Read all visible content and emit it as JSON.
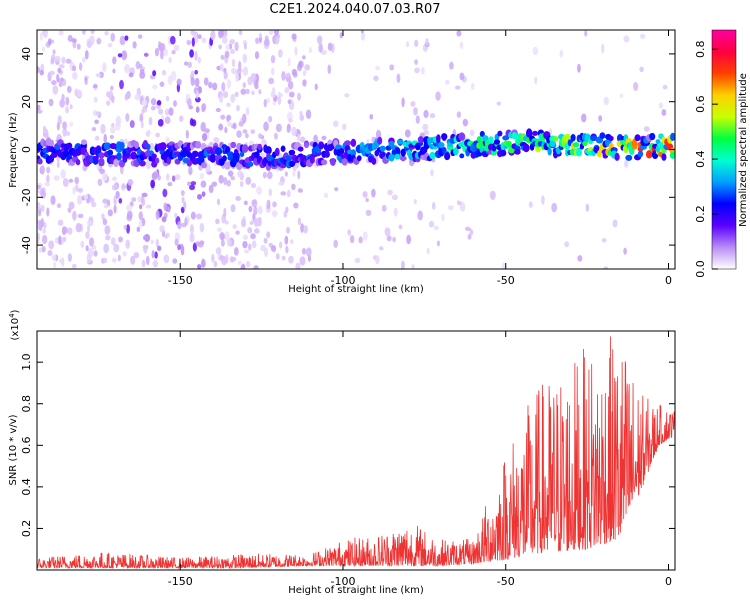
{
  "title": "C2E1.2024.040.07.03.R07",
  "chart_data": [
    {
      "type": "heatmap",
      "xlabel": "Height of straight line (km)",
      "ylabel": "Frequency (Hz)",
      "xlim": [
        -194,
        2
      ],
      "ylim": [
        -50,
        50
      ],
      "x_ticks": [
        -150,
        -100,
        -50,
        0
      ],
      "y_ticks": [
        -40,
        -20,
        0,
        20,
        40
      ],
      "colorbar": {
        "label": "Normalized spectral amplitude",
        "range": [
          0,
          0.87
        ],
        "ticks": [
          0.0,
          0.2,
          0.4,
          0.6,
          0.8
        ],
        "colors": [
          "#ffffff",
          "#b98cf5",
          "#5a00ff",
          "#0000ff",
          "#00a0ff",
          "#00ffd0",
          "#00ff40",
          "#c8ff00",
          "#ffd000",
          "#ff4000",
          "#ff0040",
          "#ff00a0"
        ]
      },
      "band_center_hz": [
        {
          "x": -194,
          "y": -1
        },
        {
          "x": -150,
          "y": -2
        },
        {
          "x": -120,
          "y": -3
        },
        {
          "x": -100,
          "y": -1
        },
        {
          "x": -80,
          "y": 0
        },
        {
          "x": -60,
          "y": 2
        },
        {
          "x": -45,
          "y": 3
        },
        {
          "x": -30,
          "y": 2
        },
        {
          "x": -15,
          "y": 1
        },
        {
          "x": 0,
          "y": 1
        }
      ]
    },
    {
      "type": "line",
      "xlabel": "Height of straight line (km)",
      "ylabel": "SNR (10 * v/v)",
      "y_multiplier": "(x10",
      "y_multiplier_exp": "4",
      "y_multiplier_close": ")",
      "xlim": [
        -194,
        2
      ],
      "ylim": [
        0,
        1.15
      ],
      "x_ticks": [
        -150,
        -100,
        -50,
        0
      ],
      "y_ticks": [
        0.2,
        0.4,
        0.6,
        0.8,
        1.0
      ],
      "color": "#ee3333",
      "envelope": [
        {
          "x": -194,
          "base": 0.01,
          "peak": 0.06
        },
        {
          "x": -175,
          "base": 0.01,
          "peak": 0.09
        },
        {
          "x": -150,
          "base": 0.01,
          "peak": 0.06
        },
        {
          "x": -130,
          "base": 0.01,
          "peak": 0.08
        },
        {
          "x": -110,
          "base": 0.02,
          "peak": 0.08
        },
        {
          "x": -100,
          "base": 0.02,
          "peak": 0.15
        },
        {
          "x": -90,
          "base": 0.02,
          "peak": 0.17
        },
        {
          "x": -80,
          "base": 0.02,
          "peak": 0.25
        },
        {
          "x": -70,
          "base": 0.02,
          "peak": 0.15
        },
        {
          "x": -60,
          "base": 0.03,
          "peak": 0.15
        },
        {
          "x": -50,
          "base": 0.05,
          "peak": 0.6
        },
        {
          "x": -40,
          "base": 0.08,
          "peak": 0.9
        },
        {
          "x": -25,
          "base": 0.1,
          "peak": 1.08
        },
        {
          "x": -15,
          "base": 0.15,
          "peak": 1.15
        },
        {
          "x": -8,
          "base": 0.4,
          "peak": 0.85
        },
        {
          "x": -3,
          "base": 0.6,
          "peak": 0.8
        },
        {
          "x": 2,
          "base": 0.65,
          "peak": 0.78
        }
      ]
    }
  ]
}
